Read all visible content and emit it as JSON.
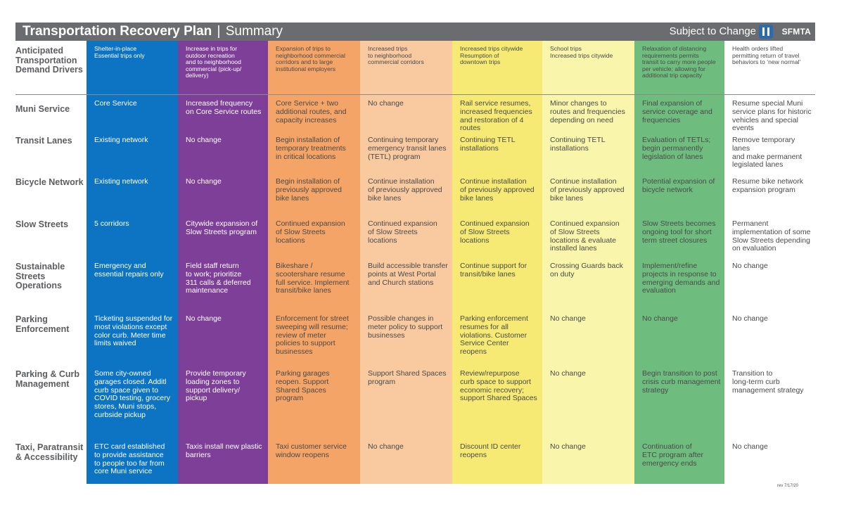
{
  "header": {
    "title": "Transportation Recovery Plan",
    "separator": "|",
    "subtitle": "Summary",
    "subject_to_change": "Subject to Change",
    "logo_text": "SFMTA"
  },
  "colors": {
    "title_bar": "#6a6c6f",
    "columns": [
      "#0c74c3",
      "#7d3f98",
      "#f4a466",
      "#f9c9a0",
      "#f6ea74",
      "#f9f5ab",
      "#6fbd7e",
      "#ffffff"
    ]
  },
  "row_labels": {
    "drivers": "Anticipated Transportation Demand Drivers",
    "muni": "Muni Service",
    "transit_lanes": "Transit Lanes",
    "bicycle": "Bicycle Network",
    "slow_streets": "Slow Streets",
    "operations": "Sustainable Streets Operations",
    "parking_enf": "Parking Enforcement",
    "parking_curb": "Parking & Curb Management",
    "taxi": "Taxi, Paratransit & Accessibility"
  },
  "columns": [
    {
      "drivers": "Shelter-in-place\nEssential trips only",
      "muni": "Core Service",
      "transit_lanes": "Existing network",
      "bicycle": "Existing network",
      "slow_streets": "5 corridors",
      "operations": "Emergency and\nessential repairs only",
      "parking_enf": "Ticketing suspended for\nmost violations except\ncolor curb. Meter time\nlimits waived",
      "parking_curb": "Some city-owned\ngarages closed. Additl\ncurb space given to\nCOVID testing, grocery\nstores, Muni stops,\ncurbside pickup",
      "taxi": "ETC card established\nto provide assistance\nto people too far from\ncore Muni service"
    },
    {
      "drivers": "Increase in trips for\noutdoor recreation\nand to neighborhood\ncommercial (pick-up/\ndelivery)",
      "muni": "Increased frequency\non Core Service routes",
      "transit_lanes": "No change",
      "bicycle": "No change",
      "slow_streets": "Citywide expansion of\nSlow Streets program",
      "operations": "Field staff return\nto work; prioritize\n311 calls & deferred\nmaintenance",
      "parking_enf": "No change",
      "parking_curb": "Provide temporary\nloading zones to\nsupport delivery/\npickup",
      "taxi": "Taxis install new plastic\nbarriers"
    },
    {
      "drivers": "Expansion of trips to\nneighborhood commercial\ncorridors and to large\ninstitutional employers",
      "muni": "Core Service + two\nadditional routes, and\ncapacity increases",
      "transit_lanes": "Begin installation of\ntemporary treatments\nin critical locations",
      "bicycle": "Begin installation of\npreviously approved\nbike lanes",
      "slow_streets": "Continued expansion\nof Slow Streets\nlocations",
      "operations": "Bikeshare /\nscootershare resume\nfull service. Implement\ntransit/bike lanes",
      "parking_enf": "Enforcement for street\nsweeping will resume;\nreview of meter\npolicies to support\nbusinesses",
      "parking_curb": "Parking garages\nreopen. Support\nShared Spaces\nprogram",
      "taxi": "Taxi customer service\nwindow reopens"
    },
    {
      "drivers": "Increased trips\nto neighborhood\ncommercial corridors",
      "muni": "No change",
      "transit_lanes": "Continuing temporary\nemergency transit lanes\n(TETL) program",
      "bicycle": "Continue installation\nof previously approved\nbike lanes",
      "slow_streets": "Continued expansion\nof Slow Streets\nlocations",
      "operations": "Build accessible transfer\npoints at West Portal\nand Church stations",
      "parking_enf": "Possible changes in\nmeter policy to support\nbusinesses",
      "parking_curb": "Support Shared Spaces\nprogram",
      "taxi": "No change"
    },
    {
      "drivers": "Increased trips citywide\nResumption of\ndowntown trips",
      "muni": "Rail service resumes,\nincreased frequencies\nand restoration of 4\nroutes",
      "transit_lanes": "Continuing TETL\ninstallations",
      "bicycle": "Continue installation\nof previously approved\nbike lanes",
      "slow_streets": "Continued expansion\nof Slow Streets\nlocations",
      "operations": "Continue support for\ntransit/bike lanes",
      "parking_enf": "Parking enforcement\nresumes for all\nviolations. Customer\nService Center\nreopens",
      "parking_curb": "Review/repurpose\ncurb space to support\neconomic recovery;\nsupport Shared Spaces",
      "taxi": "Discount ID center\nreopens"
    },
    {
      "drivers": "School trips\nIncreased trips citywide",
      "muni": "Minor changes to\nroutes and frequencies\ndepending on need",
      "transit_lanes": "Continuing TETL\ninstallations",
      "bicycle": "Continue installation\nof previously approved\nbike lanes",
      "slow_streets": "Continued expansion\nof Slow Streets\nlocations & evaluate\ninstalled lanes",
      "operations": "Crossing Guards back\non duty",
      "parking_enf": "No change",
      "parking_curb": "No change",
      "taxi": "No change"
    },
    {
      "drivers": "Relaxation of distancing\nrequirements permits\ntransit to carry more people\nper vehicle; allowing for\nadditional trip capacity",
      "muni": "Final expansion of\nservice coverage and\nfrequencies",
      "transit_lanes": "Evaluation of TETLs;\nbegin permanently\nlegislation of lanes",
      "bicycle": "Potential expansion of\nbicycle network",
      "slow_streets": "Slow Streets becomes\nongoing tool for short\nterm street closures",
      "operations": "Implement/refine\nprojects in response to\nemerging demands and\nevaluation",
      "parking_enf": "No change",
      "parking_curb": "Begin transition to post\ncrisis curb management\nstrategy",
      "taxi": "Continuation of\nETC program after\nemergency ends"
    },
    {
      "drivers": "Health orders lifted\npermitting return of travel\nbehaviors to ‘new normal’",
      "muni": "Resume special Muni\nservice plans for historic\nvehicles and special\nevents",
      "transit_lanes": "Remove temporary lanes\nand make permanent\nlegislated lanes",
      "bicycle": "Resume bike network\nexpansion program",
      "slow_streets": "Permanent\nimplementation of some\nSlow Streets depending\non evaluation",
      "operations": "No change",
      "parking_enf": "No change",
      "parking_curb": "Transition to\nlong-term curb\nmanagement strategy",
      "taxi": "No change"
    }
  ],
  "revision_note": "rev 7/17/20"
}
